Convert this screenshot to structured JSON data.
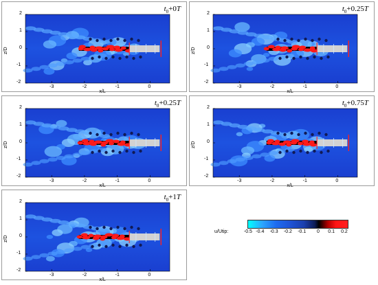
{
  "panels": [
    {
      "id": "p1",
      "time_base": "t",
      "time_sub": "0",
      "time_offset": "+0",
      "time_unit": "T"
    },
    {
      "id": "p2",
      "time_base": "t",
      "time_sub": "0",
      "time_offset": "+0.25",
      "time_unit": "T"
    },
    {
      "id": "p3",
      "time_base": "t",
      "time_sub": "0",
      "time_offset": "+0.25",
      "time_unit": "T"
    },
    {
      "id": "p4",
      "time_base": "t",
      "time_sub": "0",
      "time_offset": "+0.75",
      "time_unit": "T"
    },
    {
      "id": "p5",
      "time_base": "t",
      "time_sub": "0",
      "time_offset": "+1",
      "time_unit": "T"
    }
  ],
  "axes": {
    "ylabel": "z/D",
    "xlabel": "x/L",
    "yticks": [
      "2",
      "1",
      "0",
      "-1",
      "-2"
    ],
    "xticks": [
      "-3",
      "-2",
      "-1",
      "0"
    ]
  },
  "legend": {
    "title": "u/Utip:",
    "ticks": [
      "-0.5",
      "-0.4",
      "-0.3",
      "-0.2",
      "-0.1",
      "0",
      "0.1",
      "0.2"
    ],
    "colors": {
      "low": "#00ffff",
      "mid": "#1e54d6",
      "zero": "#000000",
      "high": "#ff2020"
    }
  }
}
